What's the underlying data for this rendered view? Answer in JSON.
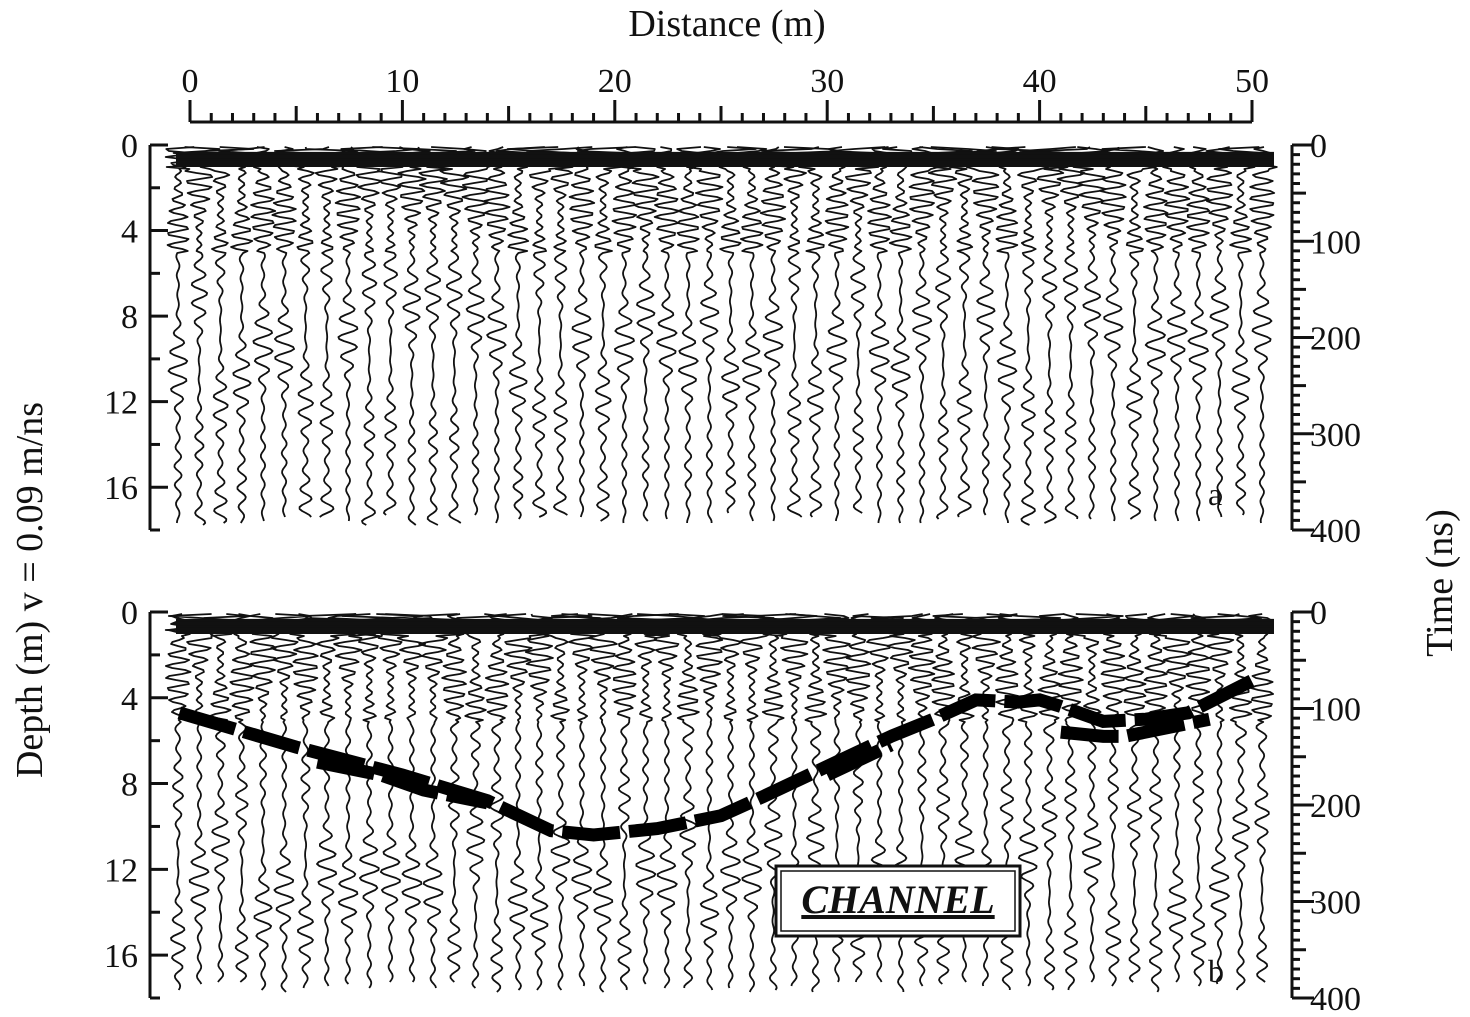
{
  "chart_data": {
    "type": "radargram",
    "x_axis": {
      "label": "Distance (m)",
      "range": [
        0,
        50
      ],
      "ticks": [
        0,
        10,
        20,
        30,
        40,
        50
      ],
      "minor_step": 1,
      "position": "top"
    },
    "y_axis_left": {
      "label": "Depth (m)   v = 0.09 m/ns",
      "range": [
        0,
        18
      ],
      "ticks": [
        0,
        4,
        8,
        12,
        16
      ],
      "inverted": true
    },
    "y_axis_right": {
      "label": "Time (ns)",
      "range": [
        0,
        400
      ],
      "ticks": [
        0,
        100,
        200,
        300,
        400
      ],
      "inverted": true
    },
    "panels": [
      {
        "tag": "a",
        "interpretation": []
      },
      {
        "tag": "b",
        "annotation": "CHANNEL",
        "interpretation": [
          {
            "name": "",
            "x": [
              -0.5,
              5,
              10,
              14,
              17,
              19,
              22,
              25,
              27,
              30,
              33,
              35,
              37,
              39,
              40,
              41,
              43,
              45,
              47,
              50
            ],
            "depth": [
              4.7,
              6.3,
              7.6,
              8.8,
              10.2,
              10.4,
              10.1,
              9.5,
              8.6,
              7.2,
              5.8,
              5.0,
              4.1,
              4.2,
              4.1,
              4.4,
              5.1,
              5.0,
              4.7,
              3.2
            ]
          },
          {
            "name": "",
            "x": [
              6,
              9,
              11,
              14
            ],
            "depth": [
              7.0,
              7.6,
              8.3,
              8.9
            ]
          },
          {
            "name": "",
            "x": [
              30,
              33
            ],
            "depth": [
              7.6,
              6.2
            ]
          },
          {
            "name": "",
            "x": [
              41,
              43,
              44,
              46,
              48
            ],
            "depth": [
              5.6,
              5.8,
              5.8,
              5.4,
              5.0
            ]
          }
        ]
      }
    ]
  }
}
